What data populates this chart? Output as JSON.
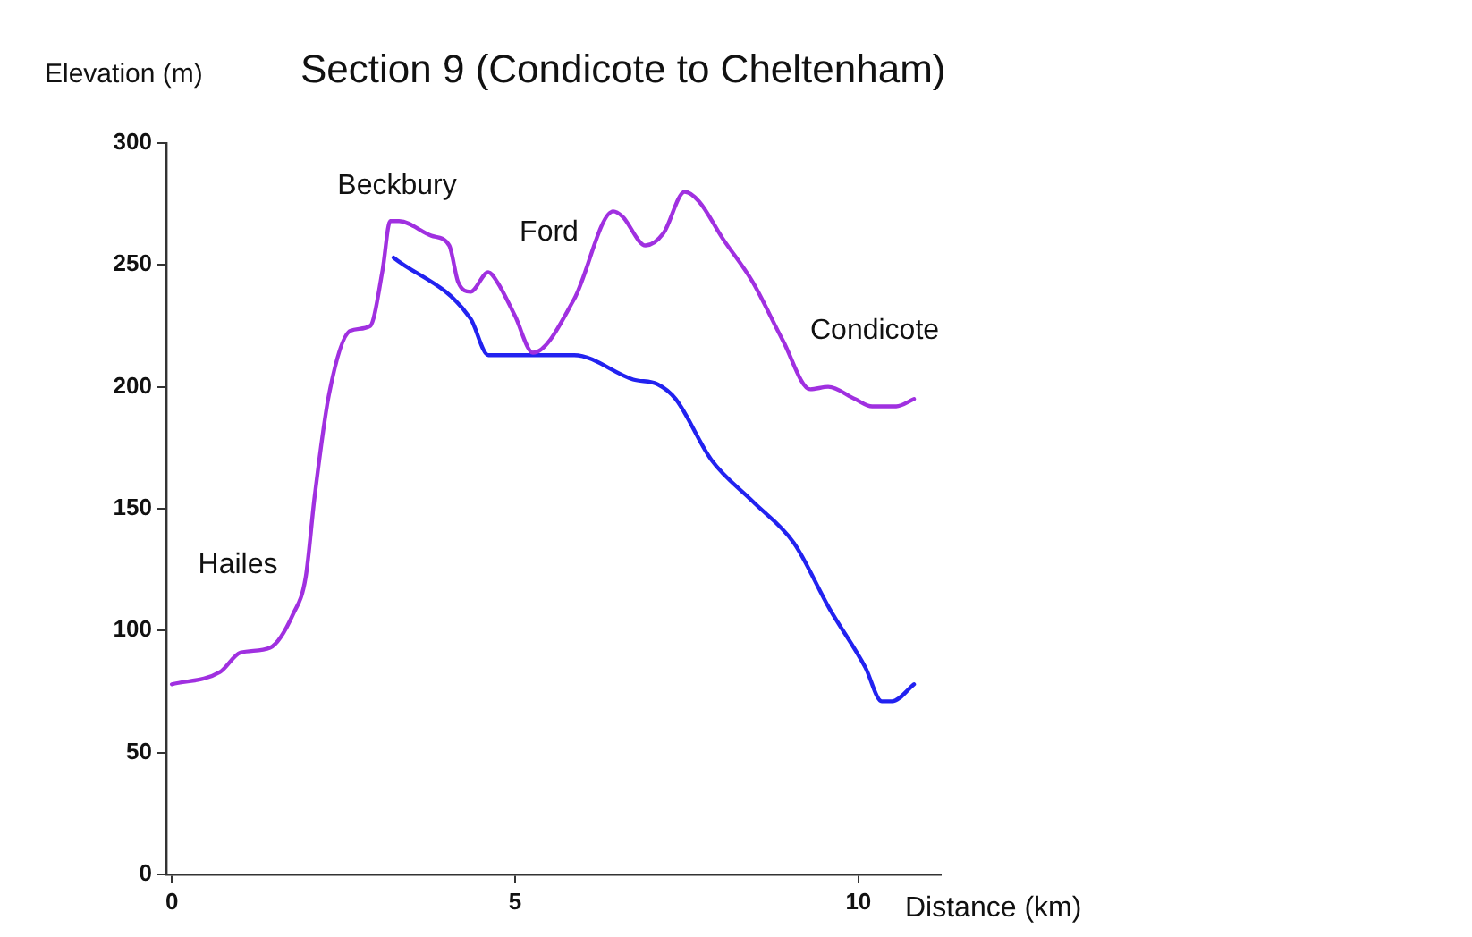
{
  "chart_data": {
    "type": "line",
    "title": "Section 9 (Condicote to Cheltenham)",
    "xlabel": "Distance (km)",
    "ylabel": "Elevation (m)",
    "annotations": [
      "Hailes",
      "Beckbury",
      "Ford",
      "Condicote"
    ],
    "series": [
      {
        "color": "#a030e0",
        "x": [
          0,
          0.7,
          1.0,
          1.43,
          1.77,
          1.95,
          2.08,
          2.29,
          2.6,
          2.89,
          3.07,
          3.18,
          3.31,
          3.78,
          4.04,
          4.17,
          4.35,
          4.61,
          4.74,
          5.0,
          5.26,
          5.86,
          6.43,
          6.56,
          6.9,
          7.16,
          7.47,
          7.68,
          8.02,
          8.46,
          8.9,
          9.3,
          9.56,
          9.95,
          10.2,
          10.55,
          10.81
        ],
        "values": [
          78,
          83,
          91,
          93,
          107,
          122,
          155,
          197,
          223,
          225,
          248,
          268,
          268,
          262,
          258,
          243,
          239,
          247,
          243,
          229,
          214,
          236,
          272,
          270,
          258,
          263,
          280,
          276,
          261,
          243,
          219,
          199,
          200,
          195,
          192,
          192,
          195
        ]
      },
      {
        "color": "#2222f0",
        "x": [
          3.23,
          4.35,
          4.61,
          5.26,
          5.86,
          6.72,
          7.08,
          7.34,
          7.86,
          8.46,
          9.06,
          9.58,
          10.1,
          10.34,
          10.49,
          10.81
        ],
        "values": [
          253,
          228,
          213,
          213,
          213,
          203,
          201,
          195,
          170,
          153,
          136,
          109,
          85,
          71,
          71,
          78
        ]
      }
    ],
    "xlim": [
      -0.08,
      11.2
    ],
    "ylim": [
      0,
      300
    ],
    "xticks": [
      0,
      5,
      10
    ],
    "yticks": [
      0,
      50,
      100,
      150,
      200,
      250,
      300
    ],
    "marker": "none",
    "line_style": "solid"
  }
}
